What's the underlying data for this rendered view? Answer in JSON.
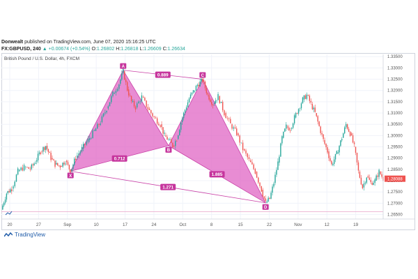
{
  "header": {
    "author": "Donwealt",
    "published": "published on TradingView.com, June 07, 2020 15:16:25 UTC",
    "symbol": "FX:GBPUSD, 240",
    "change_arrow": "▲",
    "change": "+0.00674 (+0.54%)",
    "ohlc": [
      {
        "label": "O:",
        "value": "1.26802"
      },
      {
        "label": "H:",
        "value": "1.26818"
      },
      {
        "label": "L:",
        "value": "1.26609"
      },
      {
        "label": "C:",
        "value": "1.26634"
      }
    ]
  },
  "footer": {
    "brand": "TradingView"
  },
  "colors": {
    "up": "#26a69a",
    "down": "#ef5350",
    "pattern_fill": "#e066c4",
    "pattern_line": "#c940a6",
    "label_bg": "#c6359d",
    "price_tag": "#ef5350"
  },
  "chart_data": {
    "type": "candlestick",
    "title": "British Pound / U.S. Dollar, 4h, FXCM",
    "x_ticks": [
      "20",
      "27",
      "Sep",
      "10",
      "17",
      "24",
      "Oct",
      "8",
      "15",
      "22",
      "Nov",
      "12",
      "19"
    ],
    "y_ticks": [
      "1.33500",
      "1.33000",
      "1.32500",
      "1.32000",
      "1.31500",
      "1.31000",
      "1.30500",
      "1.30000",
      "1.29500",
      "1.29000",
      "1.28500",
      "1.28000",
      "1.27500",
      "1.27000",
      "1.26500"
    ],
    "ylim": [
      1.263,
      1.336
    ],
    "last_price": "1.28088",
    "reference_line": 1.2662,
    "price_path": [
      [
        0,
        1.2672
      ],
      [
        5,
        1.2745
      ],
      [
        10,
        1.2765
      ],
      [
        16,
        1.2842
      ],
      [
        22,
        1.286
      ],
      [
        28,
        1.2852
      ],
      [
        33,
        1.2885
      ],
      [
        38,
        1.293
      ],
      [
        43,
        1.2955
      ],
      [
        48,
        1.29
      ],
      [
        52,
        1.2872
      ],
      [
        57,
        1.2865
      ],
      [
        62,
        1.2888
      ],
      [
        67,
        1.2842
      ],
      [
        72,
        1.2902
      ],
      [
        78,
        1.2942
      ],
      [
        84,
        1.298
      ],
      [
        90,
        1.302
      ],
      [
        96,
        1.306
      ],
      [
        102,
        1.312
      ],
      [
        108,
        1.3185
      ],
      [
        114,
        1.323
      ],
      [
        118,
        1.3285
      ],
      [
        122,
        1.3205
      ],
      [
        126,
        1.315
      ],
      [
        130,
        1.3125
      ],
      [
        136,
        1.3172
      ],
      [
        142,
        1.312
      ],
      [
        148,
        1.308
      ],
      [
        154,
        1.305
      ],
      [
        158,
        1.3
      ],
      [
        162,
        1.298
      ],
      [
        166,
        1.2955
      ],
      [
        170,
        1.2985
      ],
      [
        174,
        1.306
      ],
      [
        178,
        1.3115
      ],
      [
        182,
        1.3165
      ],
      [
        186,
        1.3195
      ],
      [
        190,
        1.3225
      ],
      [
        195,
        1.3245
      ],
      [
        200,
        1.318
      ],
      [
        205,
        1.314
      ],
      [
        210,
        1.3175
      ],
      [
        216,
        1.31
      ],
      [
        222,
        1.305
      ],
      [
        228,
        1.301
      ],
      [
        234,
        1.294
      ],
      [
        240,
        1.289
      ],
      [
        246,
        1.284
      ],
      [
        252,
        1.276
      ],
      [
        256,
        1.2702
      ],
      [
        260,
        1.272
      ],
      [
        264,
        1.279
      ],
      [
        268,
        1.288
      ],
      [
        272,
        1.299
      ],
      [
        276,
        1.304
      ],
      [
        280,
        1.303
      ],
      [
        284,
        1.308
      ],
      [
        288,
        1.312
      ],
      [
        292,
        1.316
      ],
      [
        296,
        1.318
      ],
      [
        300,
        1.314
      ],
      [
        304,
        1.31
      ],
      [
        308,
        1.304
      ],
      [
        312,
        1.298
      ],
      [
        316,
        1.293
      ],
      [
        320,
        1.287
      ],
      [
        325,
        1.292
      ],
      [
        330,
        1.299
      ],
      [
        334,
        1.305
      ],
      [
        338,
        1.301
      ],
      [
        342,
        1.295
      ],
      [
        346,
        1.284
      ],
      [
        350,
        1.277
      ],
      [
        354,
        1.282
      ],
      [
        358,
        1.279
      ],
      [
        362,
        1.28
      ],
      [
        366,
        1.284
      ],
      [
        370,
        1.2809
      ]
    ],
    "pattern": {
      "name": "harmonic XABCD",
      "points": [
        {
          "label": "X",
          "x": 67,
          "y": 1.2842
        },
        {
          "label": "A",
          "x": 118,
          "y": 1.329
        },
        {
          "label": "B",
          "x": 162,
          "y": 1.2955
        },
        {
          "label": "C",
          "x": 195,
          "y": 1.325
        },
        {
          "label": "D",
          "x": 256,
          "y": 1.2702
        }
      ],
      "ratios": [
        {
          "text": "0.889",
          "between": [
            "A",
            "C"
          ]
        },
        {
          "text": "0.712",
          "between": [
            "X",
            "B"
          ]
        },
        {
          "text": "1.885",
          "between": [
            "B",
            "D"
          ]
        },
        {
          "text": "1.271",
          "between": [
            "X",
            "D"
          ]
        }
      ]
    }
  }
}
